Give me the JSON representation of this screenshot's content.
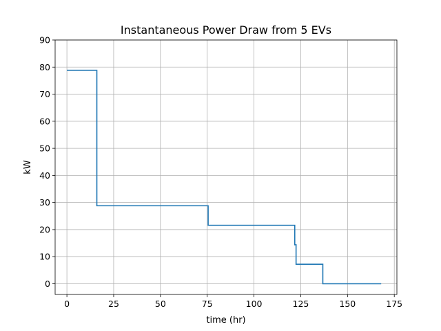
{
  "chart_data": {
    "type": "line",
    "title": "Instantaneous Power Draw from 5 EVs",
    "xlabel": "time (hr)",
    "ylabel": "kW",
    "xlim": [
      -6.3,
      176.4
    ],
    "ylim": [
      -3.95,
      90
    ],
    "xticks": [
      0,
      25,
      50,
      75,
      100,
      125,
      150,
      175
    ],
    "yticks": [
      0,
      10,
      20,
      30,
      40,
      50,
      60,
      70,
      80,
      90
    ],
    "grid": true,
    "series": [
      {
        "color": "#1f77b4",
        "step": true,
        "x": [
          0,
          16,
          16,
          75.5,
          75.5,
          121.8,
          121.8,
          122.5,
          122.5,
          136.8,
          136.8,
          168
        ],
        "y": [
          78.8,
          78.8,
          28.8,
          28.8,
          21.6,
          21.6,
          14.4,
          14.4,
          7.2,
          7.2,
          0,
          0
        ]
      }
    ]
  }
}
